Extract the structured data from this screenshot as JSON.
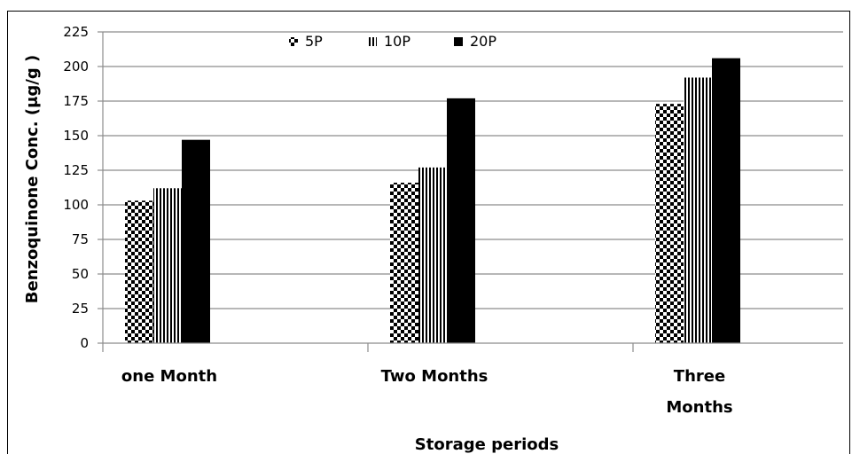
{
  "chart_data": {
    "type": "bar",
    "categories": [
      "one Month",
      "Two Months",
      "Three Months"
    ],
    "category_lines": [
      [
        "one Month"
      ],
      [
        "Two Months"
      ],
      [
        "Three",
        "Months"
      ]
    ],
    "series": [
      {
        "name": "5P",
        "values": [
          103,
          116,
          173
        ],
        "pattern": "checker"
      },
      {
        "name": "10P",
        "values": [
          112,
          127,
          192
        ],
        "pattern": "vertical-stripes"
      },
      {
        "name": "20P",
        "values": [
          147,
          177,
          206
        ],
        "pattern": "solid"
      }
    ],
    "xlabel": "Storage periods",
    "ylabel": "Benzoquinone Conc. (μg/g )",
    "ylim": [
      0,
      225
    ],
    "yticks": [
      "0",
      "25",
      "50",
      "75",
      "100",
      "125",
      "150",
      "175",
      "200",
      "225"
    ],
    "grid": true,
    "legend": "top-center",
    "colors": {
      "bar": "#000000",
      "grid": "#8c8c8c",
      "background": "#ffffff"
    }
  }
}
